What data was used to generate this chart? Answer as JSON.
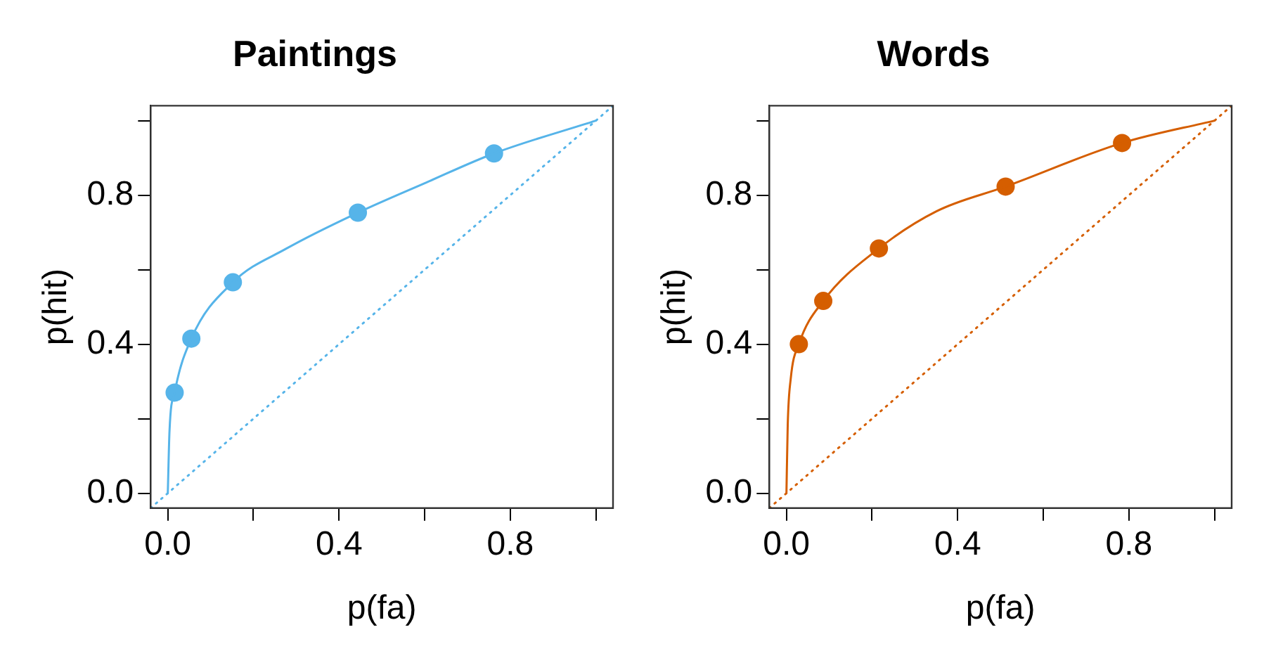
{
  "chart_data": [
    {
      "type": "scatter",
      "title": "Paintings",
      "xlabel": "p(fa)",
      "ylabel": "p(hit)",
      "xlim": [
        -0.04,
        1.04
      ],
      "ylim": [
        -0.04,
        1.04
      ],
      "xticks": [
        {
          "value": 0,
          "label": "0.0"
        },
        {
          "value": 0.2,
          "label": null
        },
        {
          "value": 0.4,
          "label": "0.4"
        },
        {
          "value": 0.6,
          "label": null
        },
        {
          "value": 0.8,
          "label": "0.8"
        },
        {
          "value": 1.0,
          "label": null
        }
      ],
      "yticks": [
        {
          "value": 0,
          "label": "0.0"
        },
        {
          "value": 0.2,
          "label": null
        },
        {
          "value": 0.4,
          "label": "0.4"
        },
        {
          "value": 0.6,
          "label": null
        },
        {
          "value": 0.8,
          "label": "0.8"
        },
        {
          "value": 1.0,
          "label": null
        }
      ],
      "grid": false,
      "legend": false,
      "series": [
        {
          "type": "line",
          "color": "#56b4e9",
          "marker": "none",
          "line_style": "solid",
          "x": [
            0,
            0.004,
            0.016,
            0.055,
            0.152,
            0.276,
            0.444,
            0.604,
            0.762,
            1.0
          ],
          "values": [
            0,
            0.167,
            0.27,
            0.415,
            0.566,
            0.656,
            0.753,
            0.834,
            0.912,
            1.0
          ]
        },
        {
          "type": "line",
          "color": "#56b4e9",
          "marker": "none",
          "line_style": "dotted",
          "x": [
            -0.04,
            1.04
          ],
          "values": [
            -0.04,
            1.04
          ]
        },
        {
          "type": "scatter",
          "color": "#56b4e9",
          "marker": "circle",
          "x": [
            0.016,
            0.055,
            0.152,
            0.444,
            0.762
          ],
          "values": [
            0.27,
            0.415,
            0.566,
            0.753,
            0.912
          ]
        }
      ]
    },
    {
      "type": "scatter",
      "title": "Words",
      "xlabel": "p(fa)",
      "ylabel": "p(hit)",
      "xlim": [
        -0.04,
        1.04
      ],
      "ylim": [
        -0.04,
        1.04
      ],
      "xticks": [
        {
          "value": 0,
          "label": "0.0"
        },
        {
          "value": 0.2,
          "label": null
        },
        {
          "value": 0.4,
          "label": "0.4"
        },
        {
          "value": 0.6,
          "label": null
        },
        {
          "value": 0.8,
          "label": "0.8"
        },
        {
          "value": 1.0,
          "label": null
        }
      ],
      "yticks": [
        {
          "value": 0,
          "label": "0.0"
        },
        {
          "value": 0.2,
          "label": null
        },
        {
          "value": 0.4,
          "label": "0.4"
        },
        {
          "value": 0.6,
          "label": null
        },
        {
          "value": 0.8,
          "label": "0.8"
        },
        {
          "value": 1.0,
          "label": null
        }
      ],
      "grid": false,
      "legend": false,
      "series": [
        {
          "type": "line",
          "color": "#d55e00",
          "marker": "none",
          "line_style": "solid",
          "x": [
            0,
            0.003,
            0.01,
            0.029,
            0.086,
            0.216,
            0.351,
            0.512,
            0.784,
            1.0
          ],
          "values": [
            0,
            0.183,
            0.307,
            0.4,
            0.516,
            0.657,
            0.757,
            0.823,
            0.94,
            1.0
          ]
        },
        {
          "type": "line",
          "color": "#d55e00",
          "marker": "none",
          "line_style": "dotted",
          "x": [
            -0.04,
            1.04
          ],
          "values": [
            -0.04,
            1.04
          ]
        },
        {
          "type": "scatter",
          "color": "#d55e00",
          "marker": "circle",
          "x": [
            0.029,
            0.086,
            0.216,
            0.512,
            0.784
          ],
          "values": [
            0.4,
            0.516,
            0.657,
            0.823,
            0.94
          ]
        }
      ]
    }
  ]
}
